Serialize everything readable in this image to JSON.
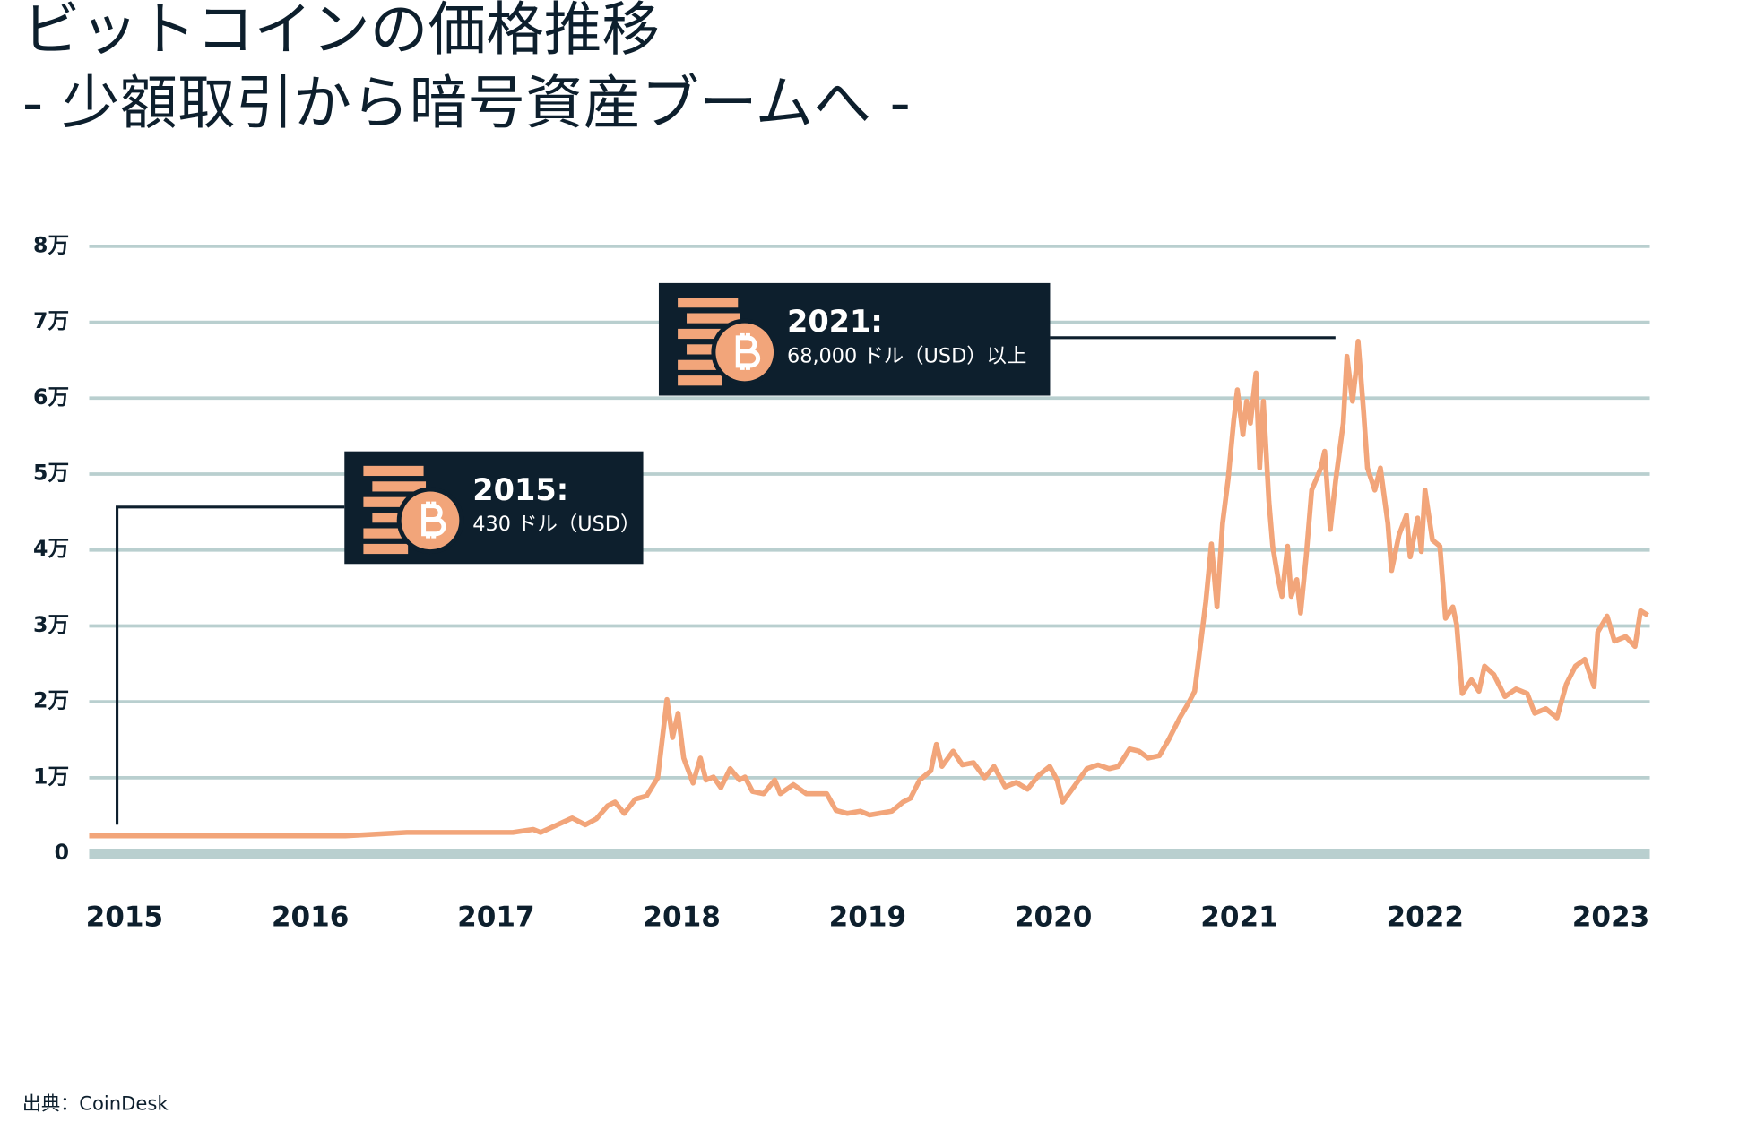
{
  "chart_data": {
    "type": "line",
    "title": "ビットコインの価格推移",
    "subtitle": "- 少額取引から暗号資産ブームへ -",
    "source": "出典：CoinDesk",
    "color": "#f2a57a",
    "grid": true,
    "xlim": [
      2014.81,
      2023.21
    ],
    "xticks": [
      2015,
      2016,
      2017,
      2018,
      2019,
      2020,
      2021,
      2022,
      2023
    ],
    "ylim": [
      0,
      80000
    ],
    "yticks": [
      0,
      {
        "value": 10000,
        "label": "1万"
      },
      {
        "value": 20000,
        "label": "2万"
      },
      {
        "value": 30000,
        "label": "3万"
      },
      {
        "value": 40000,
        "label": "4万"
      },
      {
        "value": 50000,
        "label": "5万"
      },
      {
        "value": 60000,
        "label": "6万"
      },
      {
        "value": 70000,
        "label": "7万"
      },
      {
        "value": 80000,
        "label": "8万"
      }
    ],
    "x": [
      2014.81,
      2016.19,
      2016.52,
      2017.09,
      2017.2,
      2017.24,
      2017.41,
      2017.48,
      2017.54,
      2017.6,
      2017.64,
      2017.69,
      2017.75,
      2017.81,
      2017.87,
      2017.92,
      2017.95,
      2017.98,
      2018.01,
      2018.06,
      2018.1,
      2018.13,
      2018.17,
      2018.21,
      2018.26,
      2018.31,
      2018.34,
      2018.38,
      2018.44,
      2018.5,
      2018.53,
      2018.6,
      2018.67,
      2018.78,
      2018.83,
      2018.89,
      2018.96,
      2019.01,
      2019.13,
      2019.19,
      2019.23,
      2019.28,
      2019.34,
      2019.37,
      2019.4,
      2019.46,
      2019.51,
      2019.57,
      2019.63,
      2019.68,
      2019.74,
      2019.8,
      2019.86,
      2019.92,
      2019.98,
      2020.02,
      2020.05,
      2020.11,
      2020.18,
      2020.24,
      2020.3,
      2020.35,
      2020.41,
      2020.46,
      2020.51,
      2020.57,
      2020.62,
      2020.68,
      2020.73,
      2020.76,
      2020.79,
      2020.82,
      2020.85,
      2020.88,
      2020.91,
      2020.94,
      2020.97,
      2020.99,
      2021.02,
      2021.04,
      2021.06,
      2021.09,
      2021.11,
      2021.13,
      2021.16,
      2021.18,
      2021.21,
      2021.23,
      2021.26,
      2021.28,
      2021.31,
      2021.33,
      2021.36,
      2021.39,
      2021.44,
      2021.46,
      2021.49,
      2021.52,
      2021.56,
      2021.58,
      2021.61,
      2021.63,
      2021.64,
      2021.67,
      2021.69,
      2021.73,
      2021.76,
      2021.8,
      2021.82,
      2021.86,
      2021.9,
      2021.92,
      2021.96,
      2021.98,
      2022.0,
      2022.04,
      2022.08,
      2022.11,
      2022.15,
      2022.17,
      2022.2,
      2022.25,
      2022.29,
      2022.32,
      2022.37,
      2022.43,
      2022.49,
      2022.55,
      2022.59,
      2022.65,
      2022.71,
      2022.76,
      2022.81,
      2022.86,
      2022.91,
      2022.93,
      2022.98,
      2023.02,
      2023.08,
      2023.13,
      2023.16,
      2023.2
    ],
    "values": [
      2350,
      2350,
      2800,
      2800,
      3200,
      2800,
      4700,
      3800,
      4600,
      6300,
      6800,
      5300,
      7200,
      7600,
      10000,
      20300,
      15300,
      18500,
      12600,
      9300,
      12600,
      9700,
      10100,
      8700,
      11200,
      9700,
      10100,
      8200,
      7900,
      9700,
      7900,
      9100,
      7900,
      7900,
      5700,
      5300,
      5600,
      5100,
      5600,
      6800,
      7300,
      9700,
      10900,
      14400,
      11500,
      13500,
      11700,
      12000,
      10000,
      11500,
      8800,
      9400,
      8500,
      10300,
      11500,
      9700,
      6800,
      8800,
      11200,
      11700,
      11200,
      11500,
      13800,
      13500,
      12600,
      12900,
      15000,
      17900,
      20000,
      21400,
      27300,
      33200,
      40800,
      32500,
      43500,
      49300,
      57000,
      61100,
      55200,
      59600,
      56700,
      63300,
      50800,
      59600,
      46400,
      40500,
      36100,
      33900,
      40500,
      33900,
      36100,
      31700,
      39100,
      47900,
      50800,
      53000,
      42700,
      49300,
      56700,
      65500,
      59600,
      64000,
      67500,
      58100,
      50800,
      47900,
      50800,
      43500,
      37300,
      42000,
      44600,
      39100,
      44200,
      39800,
      47900,
      41300,
      40500,
      31000,
      32500,
      30200,
      21100,
      22900,
      21400,
      24700,
      23600,
      20700,
      21700,
      21100,
      18500,
      19100,
      17900,
      22300,
      24700,
      25600,
      22000,
      29200,
      31300,
      28000,
      28600,
      27300,
      32000,
      31400
    ],
    "annotations": [
      {
        "title": "2015:",
        "text": "430 ドル（USD）"
      },
      {
        "title": "2021:",
        "text": "68,000 ドル（USD）以上"
      }
    ]
  }
}
